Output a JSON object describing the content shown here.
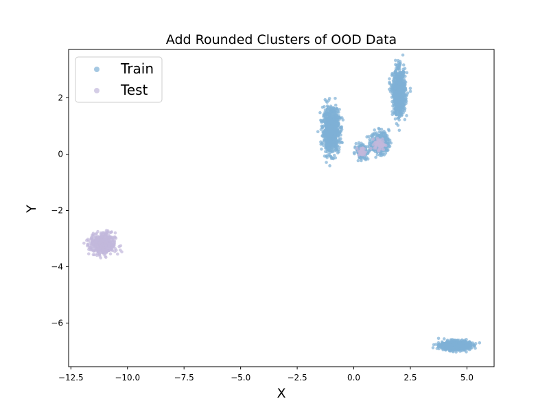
{
  "chart_data": {
    "type": "scatter",
    "title": "Add Rounded Clusters of OOD Data",
    "xlabel": "X",
    "ylabel": "Y",
    "xlim": [
      -12.6,
      6.2
    ],
    "ylim": [
      -7.55,
      3.72
    ],
    "xticks": [
      -12.5,
      -10.0,
      -7.5,
      -5.0,
      -2.5,
      0.0,
      2.5,
      5.0
    ],
    "xtick_labels": [
      "−12.5",
      "−10.0",
      "−7.5",
      "−5.0",
      "−2.5",
      "0.0",
      "2.5",
      "5.0"
    ],
    "yticks": [
      -6,
      -4,
      -2,
      0,
      2
    ],
    "ytick_labels": [
      "−6",
      "−4",
      "−2",
      "0",
      "2"
    ],
    "legend_position": "upper-left",
    "series": [
      {
        "name": "Train",
        "color": "#7fb0d6",
        "clusters": [
          {
            "center": [
              -1.0,
              0.85
            ],
            "spread": [
              0.18,
              0.38
            ],
            "count": 900
          },
          {
            "center": [
              2.0,
              2.2
            ],
            "spread": [
              0.14,
              0.4
            ],
            "count": 800
          },
          {
            "center": [
              4.5,
              -6.8
            ],
            "spread": [
              0.32,
              0.08
            ],
            "count": 700
          },
          {
            "center": [
              0.35,
              0.1
            ],
            "spread": [
              0.12,
              0.12
            ],
            "count": 200
          },
          {
            "center": [
              1.15,
              0.4
            ],
            "spread": [
              0.2,
              0.2
            ],
            "count": 300
          }
        ]
      },
      {
        "name": "Test",
        "color": "#c2b8db",
        "clusters": [
          {
            "center": [
              -11.1,
              -3.2
            ],
            "spread": [
              0.28,
              0.2
            ],
            "count": 400
          },
          {
            "center": [
              0.35,
              0.08
            ],
            "spread": [
              0.08,
              0.08
            ],
            "count": 40
          },
          {
            "center": [
              1.15,
              0.35
            ],
            "spread": [
              0.12,
              0.1
            ],
            "count": 60
          }
        ]
      }
    ]
  }
}
